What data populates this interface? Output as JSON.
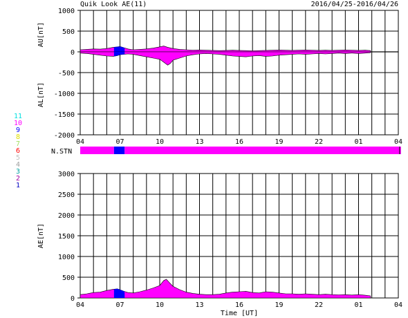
{
  "header": {
    "title": "Quik Look AE(11)",
    "date_range": "2016/04/25-2016/04/26"
  },
  "legend": [
    {
      "label": "11",
      "color": "#00e0e0"
    },
    {
      "label": "10",
      "color": "#ff00ff"
    },
    {
      "label": "9",
      "color": "#0000ff"
    },
    {
      "label": "8",
      "color": "#e0e000"
    },
    {
      "label": "7",
      "color": "#a0e060"
    },
    {
      "label": "6",
      "color": "#ff0000"
    },
    {
      "label": "5",
      "color": "#c0c0c0"
    },
    {
      "label": "4",
      "color": "#a0a0a0"
    },
    {
      "label": "3",
      "color": "#00a0a0"
    },
    {
      "label": "2",
      "color": "#a000a0"
    },
    {
      "label": "1",
      "color": "#0000c0"
    }
  ],
  "station_bar": {
    "label": "N.STN",
    "segments": [
      {
        "start": 4.0,
        "end": 6.55,
        "color": "#ff00ff"
      },
      {
        "start": 6.55,
        "end": 7.35,
        "color": "#0000ff"
      },
      {
        "start": 7.35,
        "end": 28.2,
        "color": "#ff00ff"
      }
    ],
    "ticks": [
      28.1
    ]
  },
  "chart_data": [
    {
      "type": "area",
      "title": "Quik Look AE(11)",
      "ylabel_top": "AU[nT]",
      "ylabel_bottom": "AL[nT]",
      "xlim": [
        4,
        28
      ],
      "ylim": [
        -2000,
        1000
      ],
      "yticks": [
        1000,
        500,
        0,
        -500,
        -1000,
        -1500,
        -2000
      ],
      "xtick_labels": [
        "04",
        "07",
        "10",
        "13",
        "16",
        "19",
        "22",
        "01",
        "04"
      ],
      "xtick_hours": [
        4,
        7,
        10,
        13,
        16,
        19,
        22,
        25,
        28
      ],
      "x_end": 25.9,
      "fill_color": "#ff00ff",
      "highlight": {
        "start": 6.55,
        "end": 7.35,
        "color": "#0000ff"
      },
      "series": [
        {
          "name": "AU",
          "x": [
            4.0,
            4.5,
            5.0,
            5.5,
            6.0,
            6.5,
            6.8,
            7.0,
            7.3,
            7.6,
            8.0,
            8.5,
            9.0,
            9.5,
            10.0,
            10.3,
            10.6,
            11.0,
            11.5,
            12.0,
            12.5,
            13.0,
            13.5,
            14.0,
            14.5,
            15.0,
            15.5,
            16.0,
            16.5,
            17.0,
            17.5,
            18.0,
            18.5,
            19.0,
            19.5,
            20.0,
            20.5,
            21.0,
            21.5,
            22.0,
            22.5,
            23.0,
            23.5,
            24.0,
            24.5,
            25.0,
            25.5,
            25.9
          ],
          "values": [
            50,
            60,
            70,
            65,
            80,
            110,
            120,
            130,
            100,
            70,
            50,
            60,
            70,
            90,
            120,
            140,
            110,
            80,
            60,
            50,
            40,
            45,
            40,
            35,
            30,
            35,
            40,
            35,
            30,
            25,
            30,
            35,
            40,
            45,
            40,
            35,
            40,
            45,
            40,
            35,
            40,
            35,
            40,
            45,
            40,
            35,
            40,
            30
          ]
        },
        {
          "name": "AL",
          "x": [
            4.0,
            4.5,
            5.0,
            5.5,
            6.0,
            6.5,
            6.8,
            7.0,
            7.3,
            7.6,
            8.0,
            8.5,
            9.0,
            9.5,
            10.0,
            10.3,
            10.6,
            10.8,
            11.0,
            11.5,
            12.0,
            12.5,
            13.0,
            13.5,
            14.0,
            14.5,
            15.0,
            15.5,
            16.0,
            16.5,
            17.0,
            17.5,
            18.0,
            18.5,
            19.0,
            19.5,
            20.0,
            20.5,
            21.0,
            21.5,
            22.0,
            22.5,
            23.0,
            23.5,
            24.0,
            24.5,
            25.0,
            25.5,
            25.9
          ],
          "values": [
            -30,
            -40,
            -60,
            -80,
            -100,
            -110,
            -90,
            -70,
            -60,
            -50,
            -60,
            -90,
            -120,
            -150,
            -180,
            -250,
            -320,
            -280,
            -200,
            -150,
            -100,
            -70,
            -50,
            -40,
            -50,
            -60,
            -80,
            -100,
            -110,
            -120,
            -100,
            -90,
            -110,
            -100,
            -80,
            -70,
            -60,
            -50,
            -60,
            -50,
            -40,
            -50,
            -40,
            -30,
            -40,
            -30,
            -40,
            -30,
            -20
          ]
        }
      ]
    },
    {
      "type": "area",
      "ylabel": "AE[nT]",
      "xlabel": "Time [UT]",
      "xlim": [
        4,
        28
      ],
      "ylim": [
        0,
        3000
      ],
      "yticks": [
        3000,
        2500,
        2000,
        1500,
        1000,
        500,
        0
      ],
      "xtick_labels": [
        "04",
        "07",
        "10",
        "13",
        "16",
        "19",
        "22",
        "01",
        "04"
      ],
      "xtick_hours": [
        4,
        7,
        10,
        13,
        16,
        19,
        22,
        25,
        28
      ],
      "x_end": 25.9,
      "fill_color": "#ff00ff",
      "highlight": {
        "start": 6.55,
        "end": 7.35,
        "color": "#0000ff"
      },
      "series": [
        {
          "name": "AE",
          "x": [
            4.0,
            4.5,
            5.0,
            5.5,
            6.0,
            6.5,
            6.8,
            7.0,
            7.3,
            7.6,
            8.0,
            8.5,
            9.0,
            9.5,
            10.0,
            10.3,
            10.5,
            10.7,
            11.0,
            11.5,
            12.0,
            12.5,
            13.0,
            13.5,
            14.0,
            14.5,
            15.0,
            15.5,
            16.0,
            16.5,
            17.0,
            17.5,
            18.0,
            18.5,
            19.0,
            19.5,
            20.0,
            20.5,
            21.0,
            21.5,
            22.0,
            22.5,
            23.0,
            23.5,
            24.0,
            24.5,
            25.0,
            25.5,
            25.9
          ],
          "values": [
            80,
            100,
            130,
            140,
            180,
            210,
            220,
            200,
            160,
            130,
            120,
            150,
            190,
            240,
            300,
            420,
            450,
            380,
            280,
            200,
            140,
            110,
            90,
            80,
            80,
            90,
            120,
            140,
            150,
            160,
            130,
            120,
            150,
            140,
            120,
            100,
            100,
            90,
            100,
            90,
            80,
            90,
            80,
            75,
            80,
            70,
            80,
            65,
            50
          ]
        }
      ]
    }
  ]
}
